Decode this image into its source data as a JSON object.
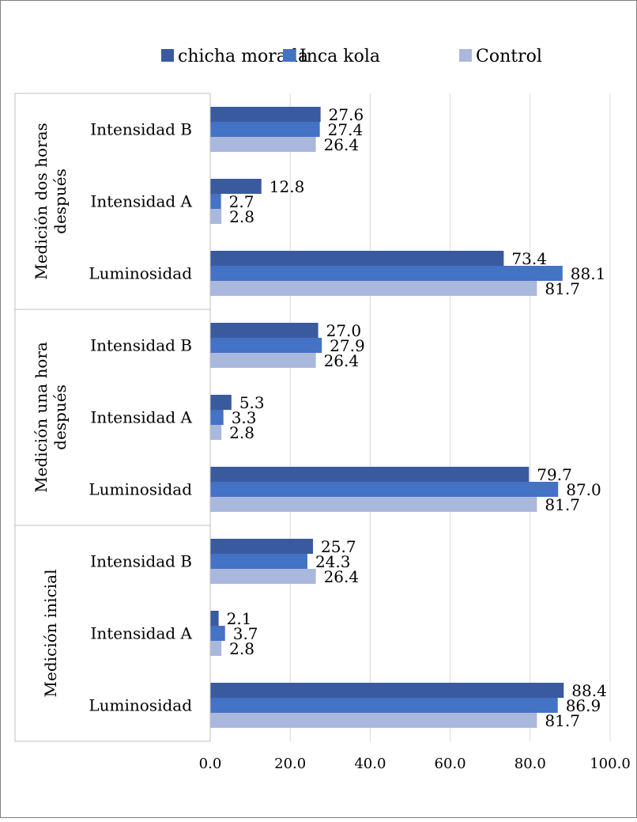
{
  "chart_data": {
    "type": "bar",
    "orientation": "horizontal",
    "title": "",
    "xlabel": "",
    "ylabel": "",
    "xlim": [
      0,
      100
    ],
    "xticks": [
      "0.0",
      "20.0",
      "40.0",
      "60.0",
      "80.0",
      "100.0"
    ],
    "grid": true,
    "legend_position": "top",
    "groups": [
      {
        "label": "Medición dos horas después",
        "categories": [
          "Intensidad B",
          "Intensidad A",
          "Luminosidad"
        ],
        "values": {
          "chicha morada": [
            27.6,
            12.8,
            73.4
          ],
          "Inca kola": [
            27.4,
            2.7,
            88.1
          ],
          "Control": [
            26.4,
            2.8,
            81.7
          ]
        }
      },
      {
        "label": "Medición una hora después",
        "categories": [
          "Intensidad B",
          "Intensidad A",
          "Luminosidad"
        ],
        "values": {
          "chicha morada": [
            27.0,
            5.3,
            79.7
          ],
          "Inca kola": [
            27.9,
            3.3,
            87.0
          ],
          "Control": [
            26.4,
            2.8,
            81.7
          ]
        }
      },
      {
        "label": "Medición inicial",
        "categories": [
          "Intensidad B",
          "Intensidad A",
          "Luminosidad"
        ],
        "values": {
          "chicha morada": [
            25.7,
            2.1,
            88.4
          ],
          "Inca kola": [
            24.3,
            3.7,
            86.9
          ],
          "Control": [
            26.4,
            2.8,
            81.7
          ]
        }
      }
    ],
    "series": [
      {
        "name": "chicha morada",
        "color": "#3a5a9f"
      },
      {
        "name": "Inca kola",
        "color": "#4472c4"
      },
      {
        "name": "Control",
        "color": "#a9b8dc"
      }
    ]
  }
}
